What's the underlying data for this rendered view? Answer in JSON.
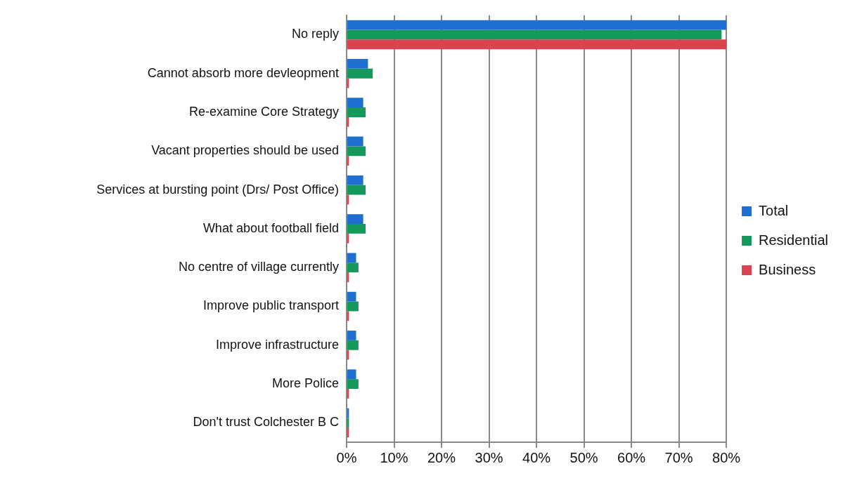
{
  "chart_data": {
    "type": "bar",
    "orientation": "horizontal",
    "categories": [
      "No reply",
      "Cannot absorb more devleopment",
      "Re-examine Core Strategy",
      "Vacant properties should be used",
      "Services at bursting point (Drs/ Post Office)",
      "What about football field",
      "No centre of village currently",
      "Improve public transport",
      "Improve infrastructure",
      "More Police",
      "Don't trust Colchester B C"
    ],
    "series": [
      {
        "name": "Total",
        "color": "#1f6fd0",
        "values": [
          80,
          4.5,
          3.5,
          3.5,
          3.5,
          3.5,
          2,
          2,
          2,
          2,
          0.5
        ]
      },
      {
        "name": "Residential",
        "color": "#14995a",
        "values": [
          79,
          5.5,
          4,
          4,
          4,
          4,
          2.5,
          2.5,
          2.5,
          2.5,
          0.5
        ]
      },
      {
        "name": "Business",
        "color": "#d9454f",
        "values": [
          80,
          0.5,
          0.5,
          0.5,
          0.5,
          0.5,
          0.5,
          0.5,
          0.5,
          0.5,
          0.5
        ]
      }
    ],
    "xlim": [
      0,
      80
    ],
    "xticks": [
      {
        "value": 0,
        "label": "0%"
      },
      {
        "value": 10,
        "label": "10%"
      },
      {
        "value": 20,
        "label": "20%"
      },
      {
        "value": 30,
        "label": "30%"
      },
      {
        "value": 40,
        "label": "40%"
      },
      {
        "value": 50,
        "label": "50%"
      },
      {
        "value": 60,
        "label": "60%"
      },
      {
        "value": 70,
        "label": "70%"
      },
      {
        "value": 80,
        "label": "80%"
      }
    ],
    "grid": "x",
    "legend": "right"
  }
}
